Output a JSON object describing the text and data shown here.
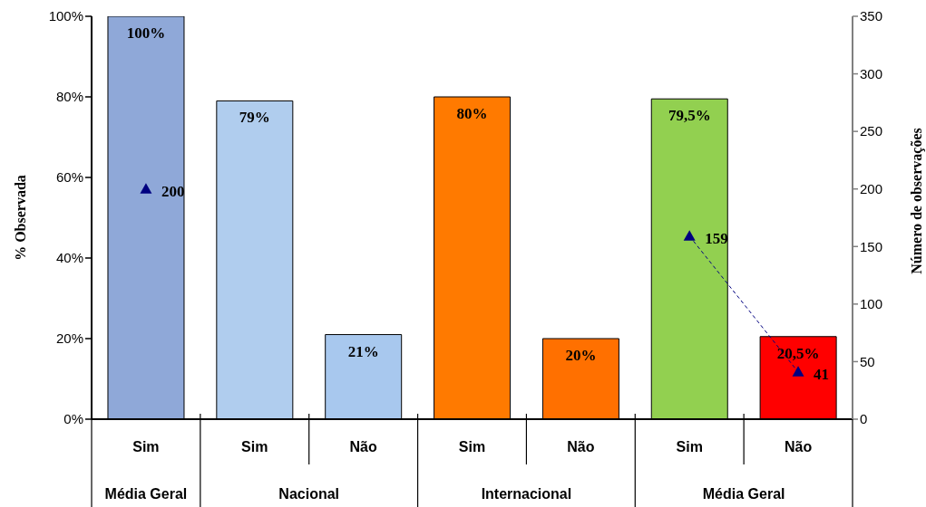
{
  "chart_data": {
    "type": "bar",
    "categories": [
      "Sim",
      "Sim",
      "Não",
      "Sim",
      "Não",
      "Sim",
      "Não"
    ],
    "annotations": [
      "Média Geral",
      "Nacional",
      "Internacional",
      "Média Geral"
    ],
    "ylabel": "% Observada",
    "y2label": "Número de observações",
    "series": [
      {
        "colors": [
          "#8fa8d8",
          "#b0cdee",
          "#a8c8ee",
          "#ff7a00",
          "#ff7000",
          "#92d050",
          "#ff0000"
        ],
        "values": [
          100,
          79,
          21,
          80,
          20,
          79.5,
          20.5
        ],
        "value_labels": [
          "100%",
          "79%",
          "21%",
          "80%",
          "20%",
          "79,5%",
          "20,5%"
        ]
      },
      {
        "type": "line",
        "axis": "y2",
        "color": "#000080",
        "values": [
          200,
          null,
          null,
          null,
          null,
          159,
          41
        ],
        "value_labels": [
          "200",
          null,
          null,
          null,
          null,
          "159",
          "41"
        ]
      }
    ],
    "marker": "triangle",
    "line_style": "dashed",
    "ylim": [
      0,
      100
    ],
    "yticks": [
      {
        "value": 0,
        "label": "0%"
      },
      {
        "value": 20,
        "label": "20%"
      },
      {
        "value": 40,
        "label": "40%"
      },
      {
        "value": 60,
        "label": "60%"
      },
      {
        "value": 80,
        "label": "80%"
      },
      {
        "value": 100,
        "label": "100%"
      }
    ],
    "y2lim": [
      0,
      350
    ],
    "y2ticks": [
      0,
      50,
      100,
      150,
      200,
      250,
      300,
      350
    ]
  }
}
